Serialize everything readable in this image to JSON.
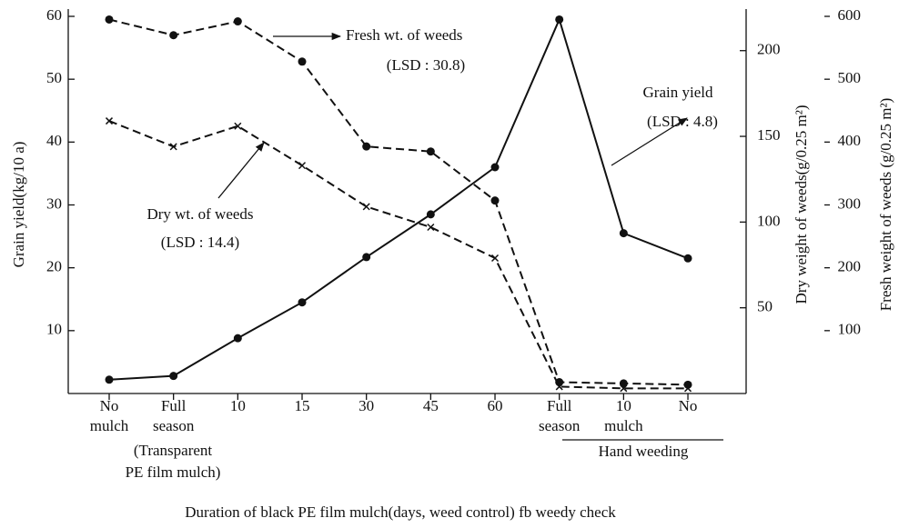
{
  "chart_data": {
    "type": "line",
    "categories": [
      [
        "No",
        "mulch"
      ],
      [
        "Full",
        "season"
      ],
      [
        "10"
      ],
      [
        "15"
      ],
      [
        "30"
      ],
      [
        "45"
      ],
      [
        "60"
      ],
      [
        "Full",
        "season"
      ],
      [
        "10",
        "mulch"
      ],
      [
        "No"
      ]
    ],
    "xlabel": "Duration of black PE film mulch(days, weed control) fb weedy check",
    "ylabel": "Grain yield(kg/10 a)",
    "y2label": "Dry weight of weeds(g/0.25 m²)",
    "y3label": "Fresh weight of weeds (g/0.25 m²)",
    "ylim": [
      0,
      60
    ],
    "yticks": [
      10,
      20,
      30,
      40,
      50,
      60
    ],
    "y2lim": [
      0,
      220
    ],
    "y2ticks": [
      50,
      100,
      150,
      200
    ],
    "y3lim": [
      0,
      600
    ],
    "y3ticks": [
      100,
      200,
      300,
      400,
      500,
      600
    ],
    "series": [
      {
        "name": "Grain yield",
        "color": "#111111",
        "marker": "circle",
        "dashed": false,
        "values": [
          2.2,
          2.8,
          8.8,
          14.5,
          21.7,
          28.5,
          36,
          59.5,
          25.5,
          21.5
        ]
      },
      {
        "name": "Fresh wt. of weeds",
        "color": "#111111",
        "marker": "circle",
        "dashed": true,
        "axis": "y3",
        "values": [
          595,
          570,
          592,
          528,
          393,
          385,
          307,
          18,
          16,
          14
        ]
      },
      {
        "name": "Dry wt. of weeds",
        "color": "#111111",
        "marker": "x",
        "dashed": true,
        "axis": "y2",
        "values": [
          159,
          144,
          156,
          133,
          109,
          97,
          79,
          4,
          3,
          3
        ]
      }
    ],
    "annotations": [
      "Fresh wt. of weeds",
      "(LSD : 30.8)",
      "Grain yield",
      "(LSD : 4.8)",
      "Dry wt. of weeds",
      "(LSD : 14.4)"
    ],
    "group_labels": [
      "(Transparent",
      "PE film mulch)",
      "Hand weeding"
    ]
  }
}
